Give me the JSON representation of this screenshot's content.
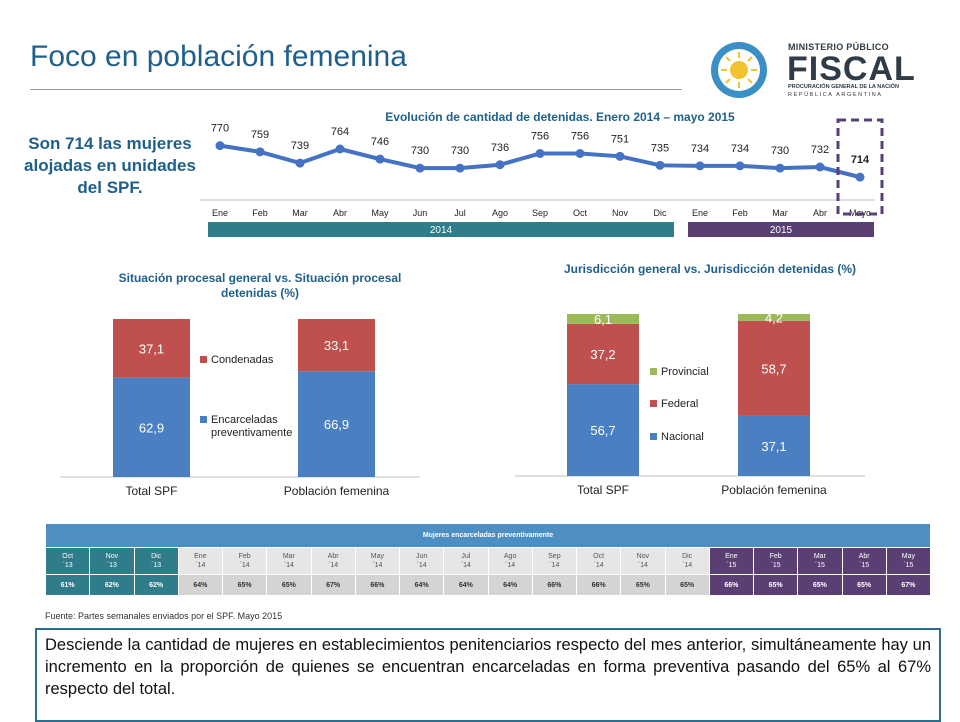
{
  "slide": {
    "title": "Foco en población femenina",
    "headline": "Son 714 las mujeres alojadas en unidades del SPF."
  },
  "logo": {
    "line1": "MINISTERIO PÚBLICO",
    "line2": "FISCAL",
    "line3": "PROCURACIÓN GENERAL DE LA NACIÓN",
    "line4": "REPÚBLICA ARGENTINA"
  },
  "colors": {
    "brand_blue": "#1f5f8b",
    "line_blue": "#4472c4",
    "year_2014": "#2f7d8a",
    "year_2015": "#5a3f75",
    "highlight_box": "#5a3f75",
    "bar_blue": "#4a7fc1",
    "bar_red": "#c0504d",
    "bar_green": "#9bbb59",
    "table_header": "#4d8fc3"
  },
  "chart_data": [
    {
      "type": "line",
      "title": "Evolución de cantidad de detenidas. Enero 2014 – mayo 2015",
      "categories": [
        "Ene",
        "Feb",
        "Mar",
        "Abr",
        "May",
        "Jun",
        "Jul",
        "Ago",
        "Sep",
        "Oct",
        "Nov",
        "Dic",
        "Ene",
        "Feb",
        "Mar",
        "Abr",
        "Mayo"
      ],
      "values": [
        770,
        759,
        739,
        764,
        746,
        730,
        730,
        736,
        756,
        756,
        751,
        735,
        734,
        734,
        730,
        732,
        714
      ],
      "year_bands": [
        {
          "label": "2014",
          "from": 0,
          "to": 11
        },
        {
          "label": "2015",
          "from": 12,
          "to": 16
        }
      ],
      "highlight_index": 16,
      "grid": false,
      "legend": "none"
    },
    {
      "type": "bar",
      "stacked": true,
      "title": "Situación procesal general vs. Situación procesal detenidas (%)",
      "categories": [
        "Total SPF",
        "Población femenina"
      ],
      "series": [
        {
          "name": "Encarceladas preventivamente",
          "values": [
            62.9,
            66.9
          ],
          "labels": [
            "62,9",
            "66,9"
          ],
          "color": "#4a7fc1"
        },
        {
          "name": "Condenadas",
          "values": [
            37.1,
            33.1
          ],
          "labels": [
            "37,1",
            "33,1"
          ],
          "color": "#c0504d"
        }
      ],
      "ylim": [
        0,
        100
      ],
      "legend": "between-bars"
    },
    {
      "type": "bar",
      "stacked": true,
      "title": "Jurisdicción general vs. Jurisdicción detenidas (%)",
      "categories": [
        "Total SPF",
        "Población femenina"
      ],
      "series": [
        {
          "name": "Nacional",
          "values": [
            56.7,
            37.1
          ],
          "labels": [
            "56,7",
            "37,1"
          ],
          "color": "#4a7fc1"
        },
        {
          "name": "Federal",
          "values": [
            37.2,
            58.7
          ],
          "labels": [
            "37,2",
            "58,7"
          ],
          "color": "#c0504d"
        },
        {
          "name": "Provincial",
          "values": [
            6.1,
            4.2
          ],
          "labels": [
            "6,1",
            "4,2"
          ],
          "color": "#9bbb59"
        }
      ],
      "ylim": [
        0,
        100
      ],
      "legend": "between-bars"
    },
    {
      "type": "table",
      "title": "Mujeres encarceladas preventivamente",
      "columns": [
        {
          "month": "Oct",
          "year": "´13",
          "value": "61%",
          "period": "2013"
        },
        {
          "month": "Nov",
          "year": "´13",
          "value": "62%",
          "period": "2013"
        },
        {
          "month": "Dic",
          "year": "´13",
          "value": "62%",
          "period": "2013"
        },
        {
          "month": "Ene",
          "year": "´14",
          "value": "64%",
          "period": "2014"
        },
        {
          "month": "Feb",
          "year": "´14",
          "value": "65%",
          "period": "2014"
        },
        {
          "month": "Mar",
          "year": "´14",
          "value": "65%",
          "period": "2014"
        },
        {
          "month": "Abr",
          "year": "´14",
          "value": "67%",
          "period": "2014"
        },
        {
          "month": "May",
          "year": "´14",
          "value": "66%",
          "period": "2014"
        },
        {
          "month": "Jun",
          "year": "´14",
          "value": "64%",
          "period": "2014"
        },
        {
          "month": "Jul",
          "year": "´14",
          "value": "64%",
          "period": "2014"
        },
        {
          "month": "Ago",
          "year": "´14",
          "value": "64%",
          "period": "2014"
        },
        {
          "month": "Sep",
          "year": "´14",
          "value": "66%",
          "period": "2014"
        },
        {
          "month": "Oct",
          "year": "´14",
          "value": "66%",
          "period": "2014"
        },
        {
          "month": "Nov",
          "year": "´14",
          "value": "65%",
          "period": "2014"
        },
        {
          "month": "Dic",
          "year": "´14",
          "value": "65%",
          "period": "2014"
        },
        {
          "month": "Ene",
          "year": "´15",
          "value": "66%",
          "period": "2015"
        },
        {
          "month": "Feb",
          "year": "´15",
          "value": "65%",
          "period": "2015"
        },
        {
          "month": "Mar",
          "year": "´15",
          "value": "65%",
          "period": "2015"
        },
        {
          "month": "Abr",
          "year": "´15",
          "value": "65%",
          "period": "2015"
        },
        {
          "month": "May",
          "year": "´15",
          "value": "67%",
          "period": "2015"
        }
      ]
    }
  ],
  "footer": {
    "source": "Fuente: Partes semanales enviados por el SPF. Mayo 2015",
    "note": "Desciende la cantidad de mujeres en establecimientos penitenciarios respecto del mes anterior, simultáneamente hay un incremento en la proporción de quienes se encuentran encarceladas en forma preventiva pasando del 65% al 67% respecto del total."
  }
}
